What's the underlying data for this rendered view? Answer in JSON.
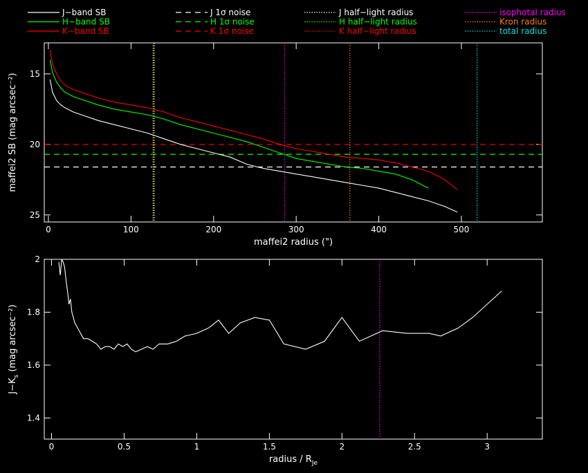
{
  "legend": {
    "items": [
      {
        "label": "J−band SB",
        "color": "#ffffff",
        "style": "solid"
      },
      {
        "label": "H−band SB",
        "color": "#00ff00",
        "style": "solid"
      },
      {
        "label": "K−band SB",
        "color": "#ff0000",
        "style": "solid"
      },
      {
        "label": "J 1σ noise",
        "color": "#ffffff",
        "style": "dashed"
      },
      {
        "label": "H 1σ noise",
        "color": "#00ff00",
        "style": "dashed"
      },
      {
        "label": "K 1σ noise",
        "color": "#ff0000",
        "style": "dashed"
      },
      {
        "label": "J half−light radius",
        "color": "#ffffff",
        "style": "dotted"
      },
      {
        "label": "H half−light radius",
        "color": "#00ff00",
        "style": "dotted"
      },
      {
        "label": "K half−light radius",
        "color": "#ff0000",
        "style": "dotted"
      },
      {
        "label": "isophotal radius",
        "color": "#ff00ff",
        "style": "dotted"
      },
      {
        "label": "Kron radius",
        "color": "#ff8000",
        "style": "dotted"
      },
      {
        "label": "total radius",
        "color": "#00e0e0",
        "style": "dotted"
      }
    ]
  },
  "chart_data": [
    {
      "type": "line",
      "xlabel": "maffei2 radius (\")",
      "ylabel": "maffei2 SB (mag arcsec⁻²)",
      "xlim": [
        -5,
        598
      ],
      "ylim": [
        25.5,
        12.8
      ],
      "y_inverted": true,
      "xticks": [
        0,
        100,
        200,
        300,
        400,
        500
      ],
      "yticks": [
        15,
        20,
        25
      ],
      "series": [
        {
          "name": "J−band SB",
          "color": "#ffffff",
          "x": [
            2,
            5,
            10,
            15,
            20,
            30,
            40,
            60,
            80,
            100,
            120,
            140,
            160,
            180,
            200,
            220,
            240,
            260,
            280,
            300,
            320,
            340,
            360,
            380,
            400,
            420,
            440,
            460,
            480,
            495
          ],
          "y": [
            15.4,
            16.3,
            16.9,
            17.2,
            17.4,
            17.7,
            17.9,
            18.3,
            18.6,
            18.9,
            19.2,
            19.6,
            20.0,
            20.3,
            20.6,
            20.9,
            21.4,
            21.7,
            21.9,
            22.1,
            22.3,
            22.5,
            22.7,
            22.9,
            23.1,
            23.4,
            23.7,
            24.0,
            24.4,
            24.8
          ]
        },
        {
          "name": "H−band SB",
          "color": "#00ff00",
          "x": [
            2,
            5,
            10,
            15,
            20,
            30,
            40,
            60,
            80,
            100,
            120,
            140,
            160,
            180,
            200,
            220,
            240,
            260,
            280,
            300,
            320,
            340,
            360,
            380,
            400,
            420,
            440,
            460
          ],
          "y": [
            14.0,
            14.9,
            15.6,
            16.0,
            16.3,
            16.6,
            16.8,
            17.2,
            17.5,
            17.7,
            17.9,
            18.2,
            18.6,
            18.9,
            19.2,
            19.5,
            19.8,
            20.2,
            20.6,
            21.0,
            21.2,
            21.4,
            21.6,
            21.7,
            21.9,
            22.1,
            22.5,
            23.1
          ]
        },
        {
          "name": "K−band SB",
          "color": "#ff0000",
          "x": [
            2,
            5,
            10,
            15,
            20,
            30,
            40,
            60,
            80,
            100,
            120,
            140,
            160,
            180,
            200,
            220,
            240,
            260,
            280,
            300,
            320,
            340,
            360,
            380,
            400,
            420,
            440,
            460,
            480,
            495
          ],
          "y": [
            13.3,
            14.3,
            15.0,
            15.5,
            15.8,
            16.1,
            16.3,
            16.7,
            17.0,
            17.2,
            17.4,
            17.7,
            18.1,
            18.4,
            18.7,
            19.0,
            19.3,
            19.6,
            20.0,
            20.3,
            20.5,
            20.7,
            20.9,
            21.0,
            21.1,
            21.3,
            21.6,
            21.9,
            22.5,
            23.2
          ]
        }
      ],
      "noise_levels": [
        {
          "name": "J 1σ noise",
          "color": "#ffffff",
          "y": 21.6
        },
        {
          "name": "H 1σ noise",
          "color": "#00ff00",
          "y": 20.7
        },
        {
          "name": "K 1σ noise",
          "color": "#ff0000",
          "y": 20.0
        }
      ],
      "radii": [
        {
          "name": "J half−light radius",
          "color": "#ffffff",
          "x": 128
        },
        {
          "name": "H half−light radius",
          "color": "#00ff00",
          "x": 127
        },
        {
          "name": "K half−light radius",
          "color": "#ff0000",
          "x": 126
        },
        {
          "name": "isophotal radius",
          "color": "#ff00ff",
          "x": 286
        },
        {
          "name": "Kron radius",
          "color": "#ff8000",
          "x": 365
        },
        {
          "name": "total radius",
          "color": "#00e0e0",
          "x": 519
        }
      ],
      "grid": false
    },
    {
      "type": "line",
      "xlabel": "radius / R",
      "xlabel_sub": "Je",
      "ylabel": "J−K",
      "ylabel_sub": "s",
      "ylabel_rest": " (mag arcsec⁻²)",
      "xlim": [
        -0.05,
        3.38
      ],
      "ylim": [
        1.32,
        2.0
      ],
      "xticks": [
        0,
        0.5,
        1,
        1.5,
        2,
        2.5,
        3
      ],
      "yticks": [
        1.4,
        1.6,
        1.8,
        2
      ],
      "series": [
        {
          "name": "J−K",
          "color": "#ffffff",
          "x": [
            0.05,
            0.06,
            0.07,
            0.08,
            0.09,
            0.1,
            0.11,
            0.12,
            0.13,
            0.14,
            0.15,
            0.16,
            0.18,
            0.2,
            0.22,
            0.25,
            0.28,
            0.31,
            0.34,
            0.37,
            0.4,
            0.43,
            0.46,
            0.49,
            0.52,
            0.55,
            0.58,
            0.62,
            0.66,
            0.7,
            0.74,
            0.8,
            0.86,
            0.92,
            1.0,
            1.08,
            1.15,
            1.22,
            1.3,
            1.4,
            1.5,
            1.6,
            1.75,
            1.88,
            2.0,
            2.12,
            2.28,
            2.45,
            2.6,
            2.68,
            2.8,
            2.9,
            3.1
          ],
          "y": [
            1.99,
            1.94,
            2.0,
            1.99,
            1.97,
            1.92,
            1.88,
            1.83,
            1.85,
            1.8,
            1.78,
            1.76,
            1.74,
            1.72,
            1.7,
            1.7,
            1.69,
            1.68,
            1.66,
            1.67,
            1.67,
            1.66,
            1.68,
            1.67,
            1.68,
            1.66,
            1.65,
            1.66,
            1.67,
            1.66,
            1.68,
            1.68,
            1.69,
            1.71,
            1.72,
            1.74,
            1.77,
            1.72,
            1.76,
            1.78,
            1.77,
            1.68,
            1.66,
            1.69,
            1.78,
            1.69,
            1.73,
            1.72,
            1.72,
            1.71,
            1.74,
            1.78,
            1.88
          ]
        }
      ],
      "radii": [
        {
          "name": "isophotal radius",
          "color": "#ff00ff",
          "x": 2.26
        }
      ],
      "grid": false
    }
  ]
}
